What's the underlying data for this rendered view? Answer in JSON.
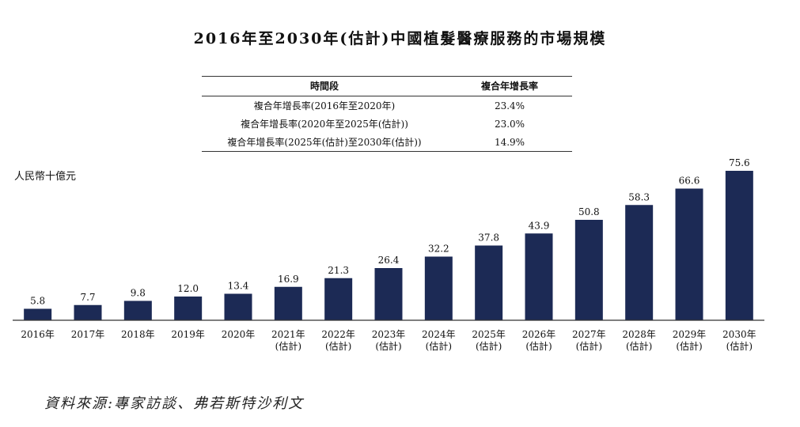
{
  "title": "2016年至2030年(估計)中國植髮醫療服務的市場規模",
  "cagr_table": {
    "headers": [
      "時間段",
      "複合年增長率"
    ],
    "rows": [
      {
        "period": "複合年增長率(2016年至2020年)",
        "rate": "23.4%"
      },
      {
        "period": "複合年增長率(2020年至2025年(估計))",
        "rate": "23.0%"
      },
      {
        "period": "複合年增長率(2025年(估計)至2030年(估計))",
        "rate": "14.9%"
      }
    ]
  },
  "source": "資料來源:專家訪談、弗若斯特沙利文",
  "chart_data": {
    "type": "bar",
    "ylabel": "人民幣十億元",
    "categories": [
      [
        "2016年"
      ],
      [
        "2017年"
      ],
      [
        "2018年"
      ],
      [
        "2019年"
      ],
      [
        "2020年"
      ],
      [
        "2021年",
        "(估計)"
      ],
      [
        "2022年",
        "(估計)"
      ],
      [
        "2023年",
        "(估計)"
      ],
      [
        "2024年",
        "(估計)"
      ],
      [
        "2025年",
        "(估計)"
      ],
      [
        "2026年",
        "(估計)"
      ],
      [
        "2027年",
        "(估計)"
      ],
      [
        "2028年",
        "(估計)"
      ],
      [
        "2029年",
        "(估計)"
      ],
      [
        "2030年",
        "(估計)"
      ]
    ],
    "values": [
      5.8,
      7.7,
      9.8,
      12.0,
      13.4,
      16.9,
      21.3,
      26.4,
      32.2,
      37.8,
      43.9,
      50.8,
      58.3,
      66.6,
      75.6
    ],
    "value_labels": [
      "5.8",
      "7.7",
      "9.8",
      "12.0",
      "13.4",
      "16.9",
      "21.3",
      "26.4",
      "32.2",
      "37.8",
      "43.9",
      "50.8",
      "58.3",
      "66.6",
      "75.6"
    ],
    "ylim": [
      0,
      80
    ],
    "grid": false,
    "bar_color": "#1c2a55"
  }
}
